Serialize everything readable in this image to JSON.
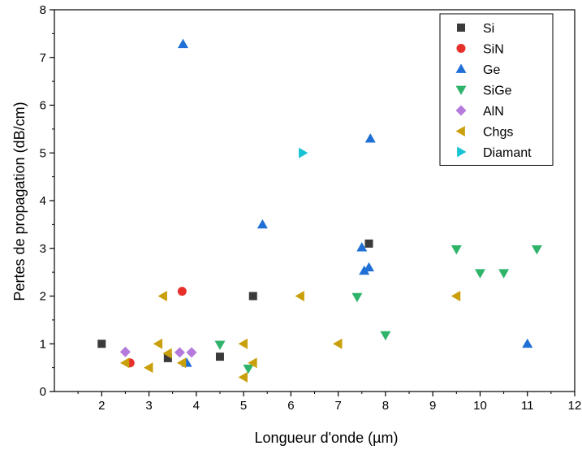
{
  "chart_data": {
    "type": "scatter",
    "xlabel": "Longueur d'onde (µm)",
    "ylabel": "Pertes de propagation (dB/cm)",
    "xlim": [
      1,
      12
    ],
    "ylim": [
      0,
      8
    ],
    "x_ticks": [
      2,
      3,
      4,
      5,
      6,
      7,
      8,
      9,
      10,
      11,
      12
    ],
    "y_ticks": [
      0,
      1,
      2,
      3,
      4,
      5,
      6,
      7,
      8
    ],
    "grid": false,
    "legend_position": "top-right",
    "series": [
      {
        "name": "Si",
        "marker": "square",
        "color": "#3a3a3a",
        "points": [
          [
            2.0,
            1.0
          ],
          [
            3.4,
            0.7
          ],
          [
            4.5,
            0.73
          ],
          [
            5.2,
            2.0
          ],
          [
            7.65,
            3.1
          ]
        ]
      },
      {
        "name": "SiN",
        "marker": "circle",
        "color": "#e8302a",
        "points": [
          [
            2.6,
            0.6
          ],
          [
            3.7,
            2.1
          ]
        ]
      },
      {
        "name": "Ge",
        "marker": "triangle-up",
        "color": "#1f6fd6",
        "points": [
          [
            3.72,
            7.28
          ],
          [
            3.8,
            0.6
          ],
          [
            5.4,
            3.5
          ],
          [
            7.5,
            3.02
          ],
          [
            7.55,
            2.53
          ],
          [
            7.65,
            2.6
          ],
          [
            7.68,
            5.3
          ],
          [
            11.0,
            1.0
          ]
        ]
      },
      {
        "name": "SiGe",
        "marker": "triangle-down",
        "color": "#2fb36a",
        "points": [
          [
            4.5,
            0.98
          ],
          [
            5.1,
            0.48
          ],
          [
            7.4,
            1.98
          ],
          [
            8.0,
            1.18
          ],
          [
            9.5,
            2.98
          ],
          [
            10.0,
            2.48
          ],
          [
            10.5,
            2.48
          ],
          [
            11.2,
            2.98
          ]
        ]
      },
      {
        "name": "AlN",
        "marker": "diamond",
        "color": "#b47bdc",
        "points": [
          [
            2.5,
            0.83
          ],
          [
            3.65,
            0.82
          ],
          [
            3.9,
            0.82
          ]
        ]
      },
      {
        "name": "Chgs",
        "marker": "triangle-left",
        "color": "#c9a00c",
        "points": [
          [
            2.5,
            0.6
          ],
          [
            3.0,
            0.5
          ],
          [
            3.2,
            1.0
          ],
          [
            3.3,
            2.0
          ],
          [
            3.4,
            0.8
          ],
          [
            3.7,
            0.6
          ],
          [
            5.0,
            1.0
          ],
          [
            5.0,
            0.3
          ],
          [
            5.2,
            0.6
          ],
          [
            6.2,
            2.0
          ],
          [
            7.0,
            1.0
          ],
          [
            9.5,
            2.0
          ]
        ]
      },
      {
        "name": "Diamant",
        "marker": "triangle-right",
        "color": "#19c3d6",
        "points": [
          [
            6.25,
            5.0
          ]
        ]
      }
    ]
  }
}
